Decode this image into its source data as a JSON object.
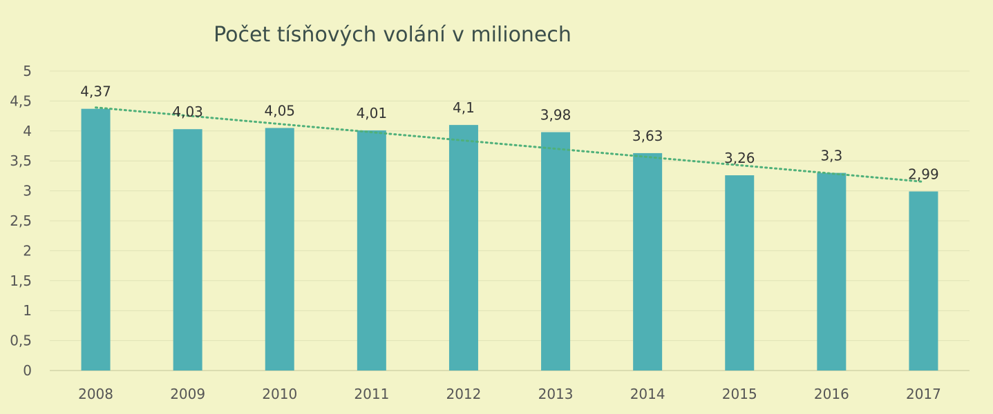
{
  "chart_data": {
    "type": "bar",
    "title": "Počet tísňových volání v milionech",
    "xlabel": "",
    "ylabel": "",
    "categories": [
      "2008",
      "2009",
      "2010",
      "2011",
      "2012",
      "2013",
      "2014",
      "2015",
      "2016",
      "2017"
    ],
    "values": [
      4.37,
      4.03,
      4.05,
      4.01,
      4.1,
      3.98,
      3.63,
      3.26,
      3.3,
      2.99
    ],
    "data_labels": [
      "4,37",
      "4,03",
      "4,05",
      "4,01",
      "4,1",
      "3,98",
      "3,63",
      "3,26",
      "3,3",
      "2,99"
    ],
    "ylim": [
      0,
      5
    ],
    "yticks": [
      0,
      0.5,
      1,
      1.5,
      2,
      2.5,
      3,
      3.5,
      4,
      4.5,
      5
    ],
    "ytick_labels": [
      "0",
      "0,5",
      "1",
      "1,5",
      "2",
      "2,5",
      "3",
      "3,5",
      "4",
      "4,5",
      "5"
    ],
    "trendline": {
      "type": "linear",
      "style": "dotted"
    },
    "grid": true,
    "legend": "none",
    "colors": {
      "background": "#f3f4c8",
      "bar": "#4fb0b4",
      "trendline": "#4fb07a",
      "grid": "#e0e2b6",
      "title": "#3b4e4a",
      "tick_text": "#555555",
      "label_text": "#333333"
    }
  }
}
